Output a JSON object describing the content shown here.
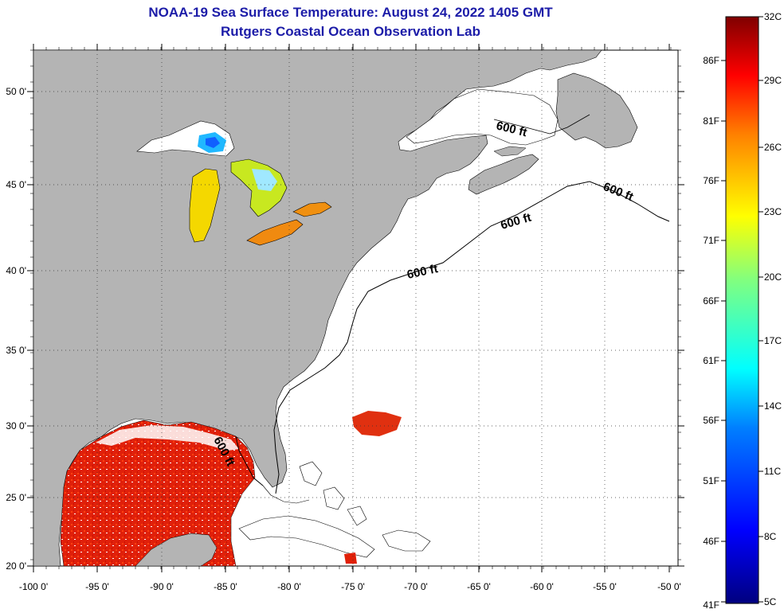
{
  "title": {
    "line1": "NOAA-19 Sea Surface Temperature:  August 24, 2022 1405 GMT",
    "line2": "Rutgers Coastal Ocean Observation Lab"
  },
  "map": {
    "lon_labels": [
      "-100 0'",
      "-95 0'",
      "-90 0'",
      "-85 0'",
      "-80 0'",
      "-75 0'",
      "-70 0'",
      "-65 0'",
      "-60 0'",
      "-55 0'",
      "-50 0'"
    ],
    "lat_labels": [
      "50 0'",
      "45 0'",
      "40 0'",
      "35 0'",
      "30 0'",
      "25 0'",
      "20 0'"
    ],
    "isobath_label": "600 ft",
    "land_color": "#b4b4b4",
    "ocean_color": "#ffffff"
  },
  "colorbar": {
    "celsius_labels": [
      "32C",
      "29C",
      "26C",
      "23C",
      "20C",
      "17C",
      "14C",
      "11C",
      "8C",
      "5C"
    ],
    "fahrenheit_labels": [
      "86F",
      "81F",
      "76F",
      "71F",
      "66F",
      "61F",
      "56F",
      "51F",
      "46F",
      "41F"
    ],
    "colors": [
      "#00007f",
      "#0000ff",
      "#0080ff",
      "#00ffff",
      "#80ff80",
      "#ffff00",
      "#ff8000",
      "#ff0000",
      "#7f0000"
    ]
  }
}
